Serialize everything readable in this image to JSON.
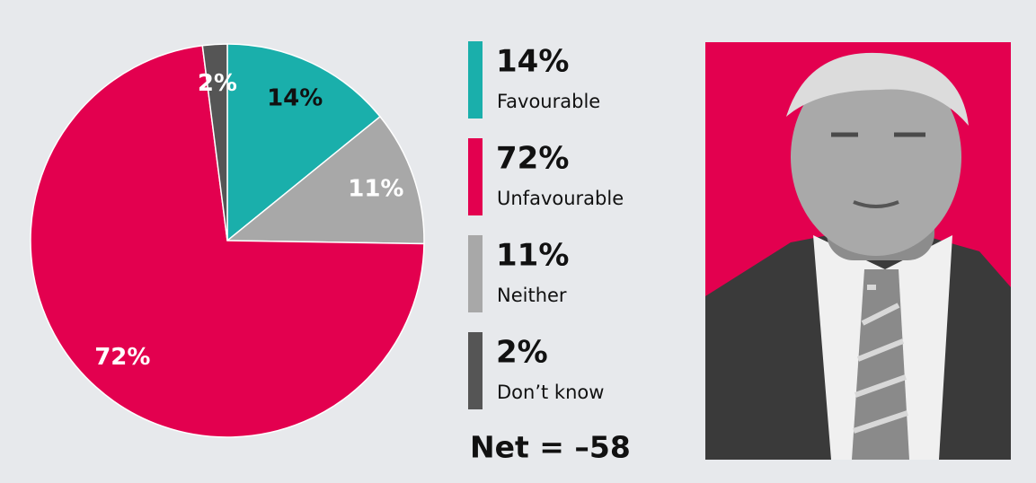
{
  "chart_data": {
    "type": "pie",
    "categories": [
      "Favourable",
      "Unfavourable",
      "Neither",
      "Don’t know"
    ],
    "values": [
      14,
      72,
      11,
      2
    ],
    "value_labels": [
      "14%",
      "72%",
      "11%",
      "2%"
    ],
    "colors": [
      "#1aafab",
      "#e3004f",
      "#a8a8a8",
      "#555555"
    ],
    "value_label_colors": [
      "#111111",
      "#ffffff",
      "#ffffff",
      "#ffffff"
    ],
    "pie_order": [
      0,
      2,
      1,
      3
    ],
    "annotation": "Net = –58"
  }
}
